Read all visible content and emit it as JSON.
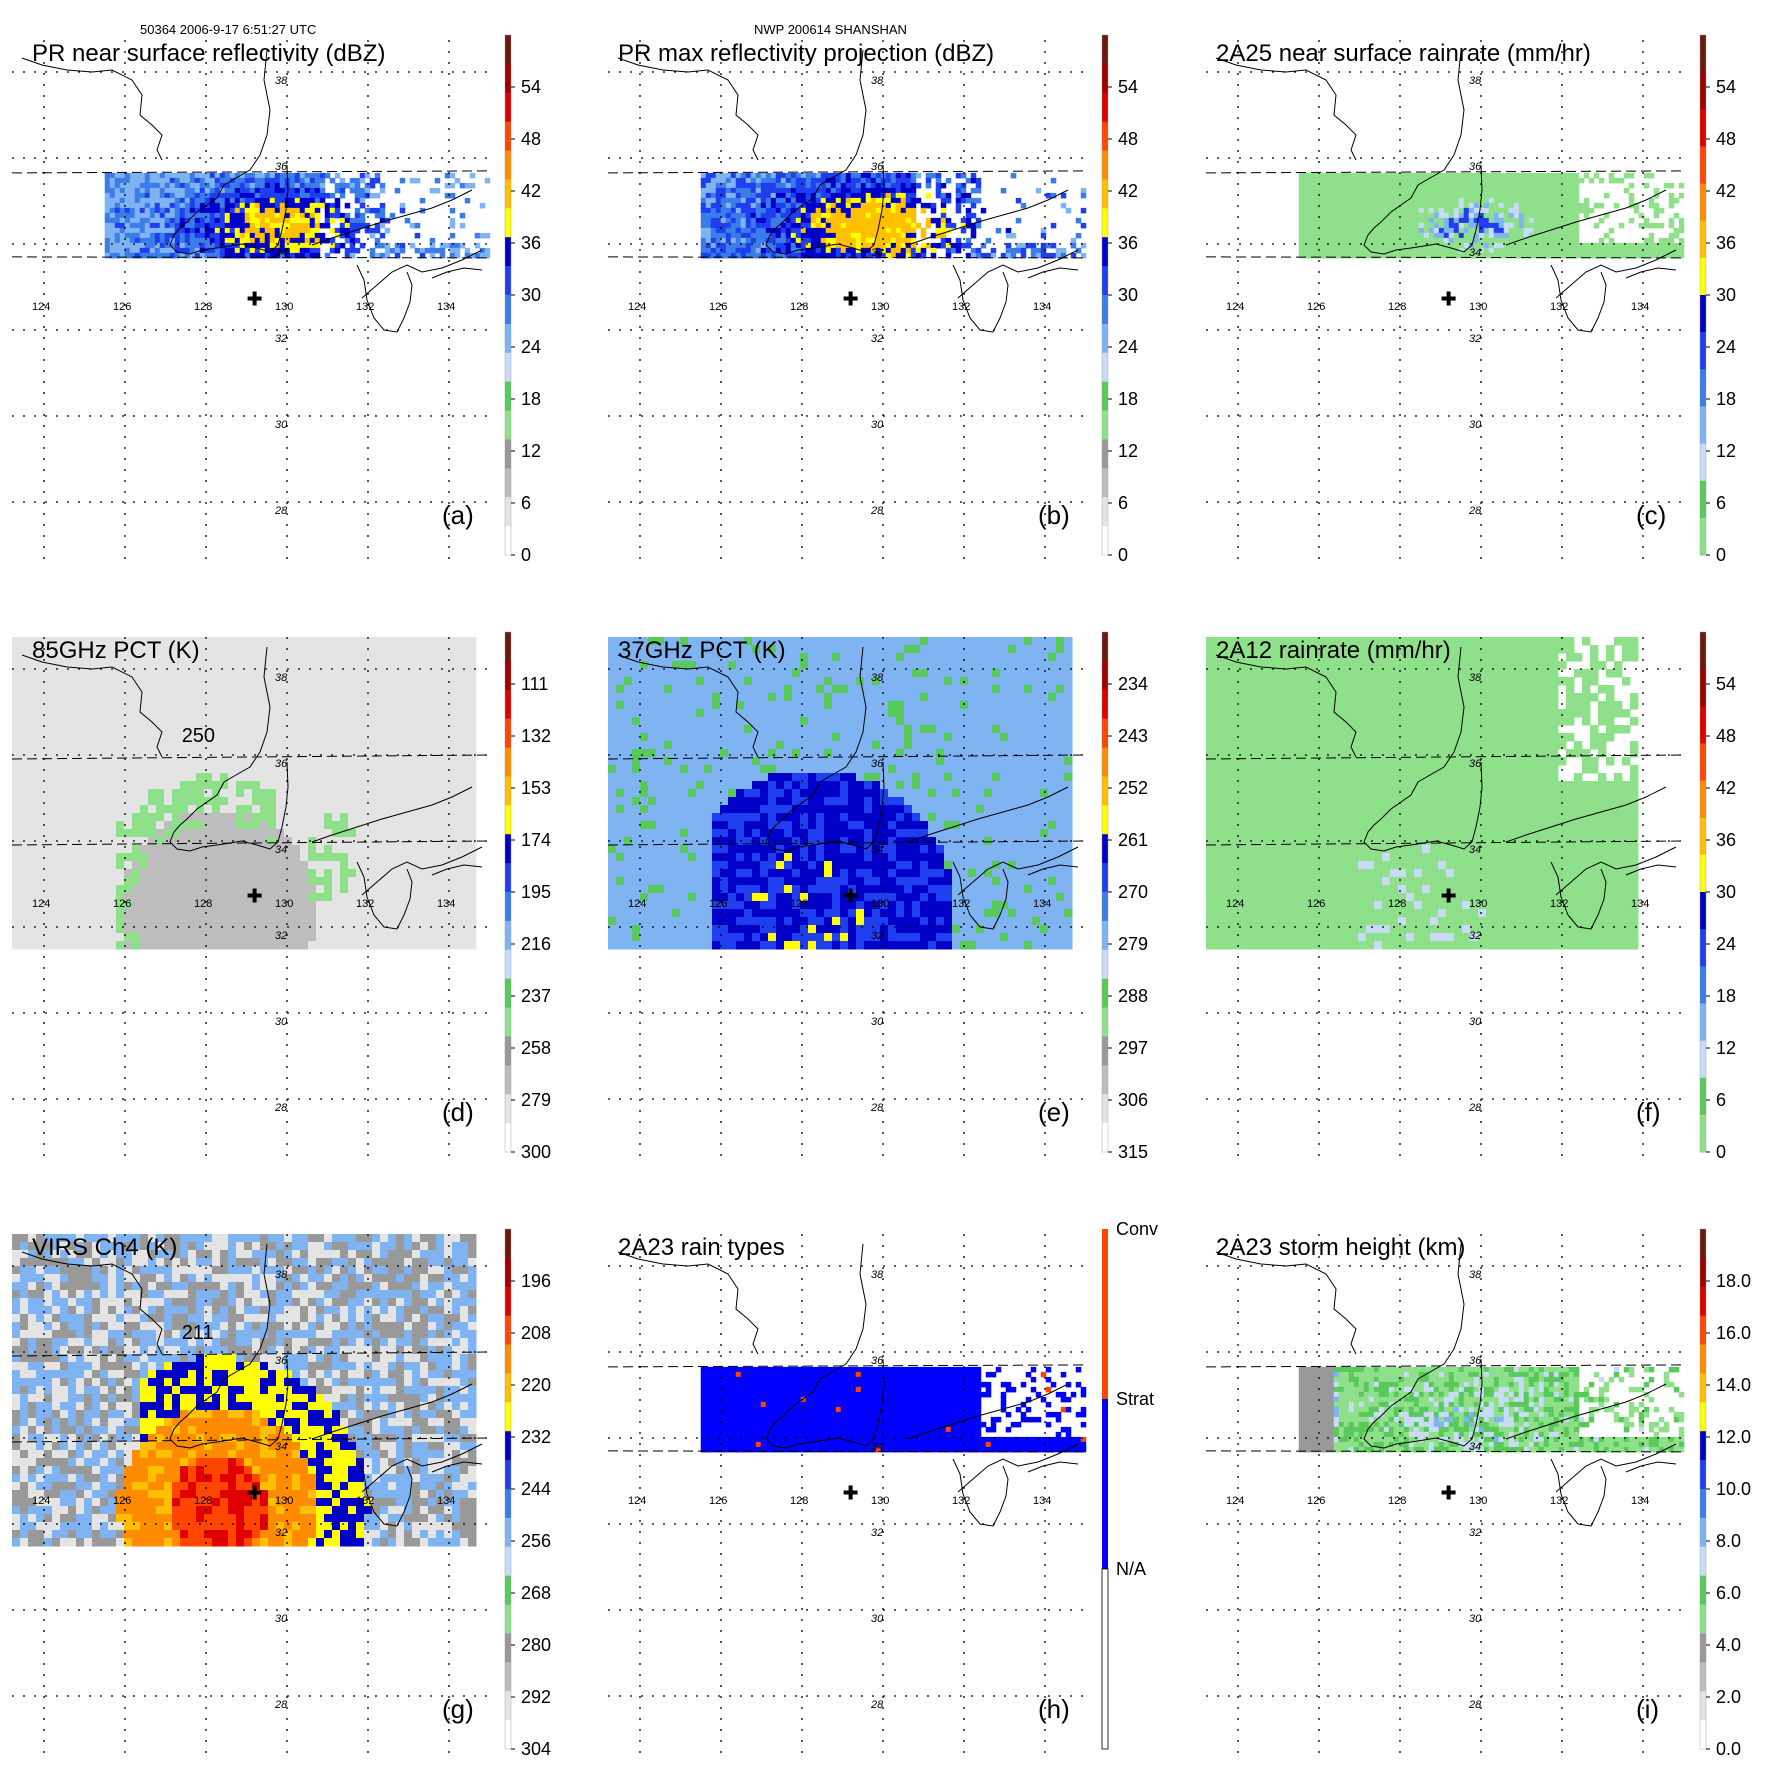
{
  "header": {
    "left": "50364 2006-9-17 6:51:27 UTC",
    "center": "NWP 200614 SHANSHAN"
  },
  "grid": {
    "lon_labels": [
      "124",
      "126",
      "128",
      "130",
      "132",
      "134"
    ],
    "lat_labels": [
      "38",
      "36",
      "34",
      "32",
      "30",
      "28"
    ]
  },
  "panels": [
    {
      "id": "a",
      "title": "PR near surface reflectivity (dBZ)",
      "label": "(a)",
      "field": "swath-reflectivity",
      "colorbar": "dbz"
    },
    {
      "id": "b",
      "title": "PR max reflectivity projection (dBZ)",
      "label": "(b)",
      "field": "swath-reflectivity-max",
      "colorbar": "dbz"
    },
    {
      "id": "c",
      "title": "2A25 near surface rainrate (mm/hr)",
      "label": "(c)",
      "field": "swath-rain",
      "colorbar": "rain"
    },
    {
      "id": "d",
      "title": "85GHz PCT (K)",
      "label": "(d)",
      "field": "wide-85",
      "colorbar": "pct85",
      "contour_label": "250"
    },
    {
      "id": "e",
      "title": "37GHz PCT (K)",
      "label": "(e)",
      "field": "wide-37",
      "colorbar": "pct37"
    },
    {
      "id": "f",
      "title": "2A12 rainrate (mm/hr)",
      "label": "(f)",
      "field": "wide-rain",
      "colorbar": "rain2"
    },
    {
      "id": "g",
      "title": "VIRS Ch4 (K)",
      "label": "(g)",
      "field": "wide-ir",
      "colorbar": "ir",
      "contour_label": "211"
    },
    {
      "id": "h",
      "title": "2A23 rain types",
      "label": "(h)",
      "field": "swath-types",
      "colorbar": "types"
    },
    {
      "id": "i",
      "title": "2A23 storm height (km)",
      "label": "(i)",
      "field": "swath-height",
      "colorbar": "height"
    }
  ],
  "colorbars": {
    "dbz": {
      "ticks": [
        "54",
        "48",
        "42",
        "36",
        "30",
        "24",
        "18",
        "12",
        "6",
        "0"
      ]
    },
    "rain": {
      "ticks": [
        "54",
        "48",
        "42",
        "36",
        "30",
        "24",
        "18",
        "12",
        "6",
        "0"
      ]
    },
    "pct85": {
      "ticks": [
        "111",
        "132",
        "153",
        "174",
        "195",
        "216",
        "237",
        "258",
        "279",
        "300"
      ]
    },
    "pct37": {
      "ticks": [
        "234",
        "243",
        "252",
        "261",
        "270",
        "279",
        "288",
        "297",
        "306",
        "315"
      ]
    },
    "rain2": {
      "ticks": [
        "54",
        "48",
        "42",
        "36",
        "30",
        "24",
        "18",
        "12",
        "6",
        "0"
      ]
    },
    "ir": {
      "ticks": [
        "196",
        "208",
        "220",
        "232",
        "244",
        "256",
        "268",
        "280",
        "292",
        "304"
      ]
    },
    "types": {
      "labels": [
        "Conv",
        "Strat",
        "N/A"
      ]
    },
    "height": {
      "ticks": [
        "18.0",
        "16.0",
        "14.0",
        "12.0",
        "10.0",
        "8.0",
        "6.0",
        "4.0",
        "2.0",
        "0.0"
      ]
    }
  },
  "colors": {
    "scale": [
      "#ffffff",
      "#e4e4e4",
      "#bdbdbd",
      "#999999",
      "#8fe08a",
      "#59c95a",
      "#c9dcf7",
      "#7fb3f2",
      "#3b7de8",
      "#1f3ef0",
      "#0000c8",
      "#ffff00",
      "#ffc000",
      "#ff8c00",
      "#ff4500",
      "#e00000",
      "#a00000",
      "#6b1a10"
    ],
    "rain_scale": [
      "#8fe08a",
      "#59c95a",
      "#c9dcf7",
      "#7fb3f2",
      "#3b7de8",
      "#1f3ef0",
      "#0000c8",
      "#ffff00",
      "#ffc000",
      "#ff8c00",
      "#ff4500",
      "#e00000",
      "#a00000",
      "#6b1a10"
    ],
    "types_scale": [
      "#ffffff",
      "#0000ff",
      "#ff4500"
    ]
  }
}
